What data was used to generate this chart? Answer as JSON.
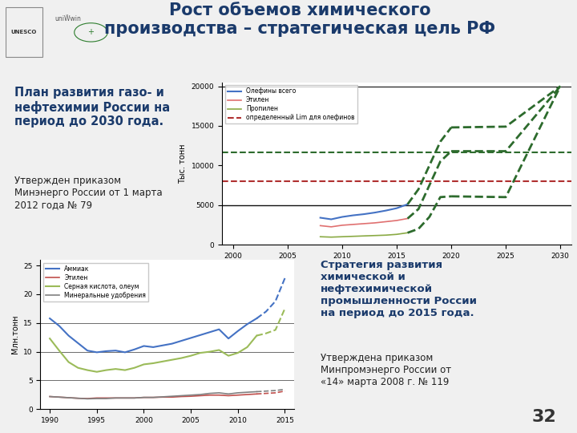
{
  "title_line1": "Рост объемов химического",
  "title_line2": "производства – стратегическая цель РФ",
  "title_color": "#1a3a6b",
  "title_fontsize": 15,
  "bg_color": "#f0f0f0",
  "slide_number": "32",
  "left_text_bold_line1": "План развития газо- и",
  "left_text_bold_line2": "нефтехимии России на",
  "left_text_bold_line3": "период до 2030 года.",
  "left_text_normal": "Утвержден приказом\nМинэнерго России от 1 марта\n2012 года № 79",
  "right_text_bold_line1": "Стратегия развития",
  "right_text_bold_line2": "химической и",
  "right_text_bold_line3": "нефтехимической",
  "right_text_bold_line4": "промышленности России",
  "right_text_bold_line5": "на период до 2015 года.",
  "right_text_normal2": "Утверждена приказом\nМинпромэнерго России от\n«14» марта 2008 г. № 119",
  "chart1_ylabel": "Тыс. тонн",
  "chart1_xticks": [
    2000,
    2005,
    2010,
    2015,
    2020,
    2025,
    2030
  ],
  "chart1_yticks": [
    0,
    5000,
    10000,
    15000,
    20000
  ],
  "chart1_ylim": [
    0,
    20500
  ],
  "chart1_xlim": [
    1999,
    2031
  ],
  "chart2_ylabel": "Млн.тонн",
  "chart2_xticks": [
    1990,
    1995,
    2000,
    2005,
    2010,
    2015
  ],
  "chart2_yticks": [
    0,
    5,
    10,
    15,
    20,
    25
  ],
  "chart2_ylim": [
    0,
    26
  ],
  "chart2_xlim": [
    1989,
    2016
  ],
  "header_bg": "#ffffff",
  "content_bg": "#f0f0f0",
  "separator_color": "#aaaaaa",
  "c1_olefiny_color": "#4472c4",
  "c1_etilen_color": "#e07070",
  "c1_propilen_color": "#8aaa44",
  "c1_limit_color": "#b03030",
  "c1_forecast_color": "#2d6b2d",
  "c2_ammiak_color": "#4472c4",
  "c2_etilen_color": "#c0504d",
  "c2_sulfur_color": "#9bbb59",
  "c2_mineral_color": "#808080"
}
